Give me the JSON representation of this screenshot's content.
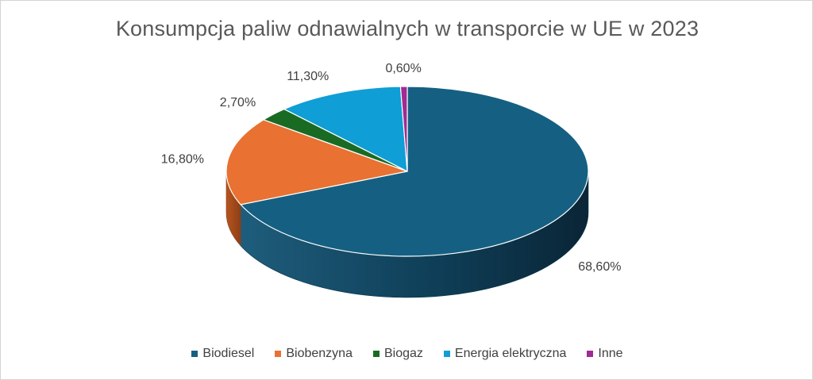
{
  "chart_data": {
    "type": "pie",
    "style": "3d",
    "title": "Konsumpcja paliw odnawialnych w transporcie w UE w 2023",
    "categories": [
      "Biodiesel",
      "Biobenzyna",
      "Biogaz",
      "Energia elektryczna",
      "Inne"
    ],
    "values": [
      68.6,
      16.8,
      2.7,
      11.3,
      0.6
    ],
    "data_labels": [
      "68,60%",
      "16,80%",
      "2,70%",
      "11,30%",
      "0,60%"
    ],
    "colors": [
      "#156082",
      "#e97132",
      "#196b24",
      "#0f9ed5",
      "#a02b93"
    ],
    "legend_position": "bottom"
  }
}
